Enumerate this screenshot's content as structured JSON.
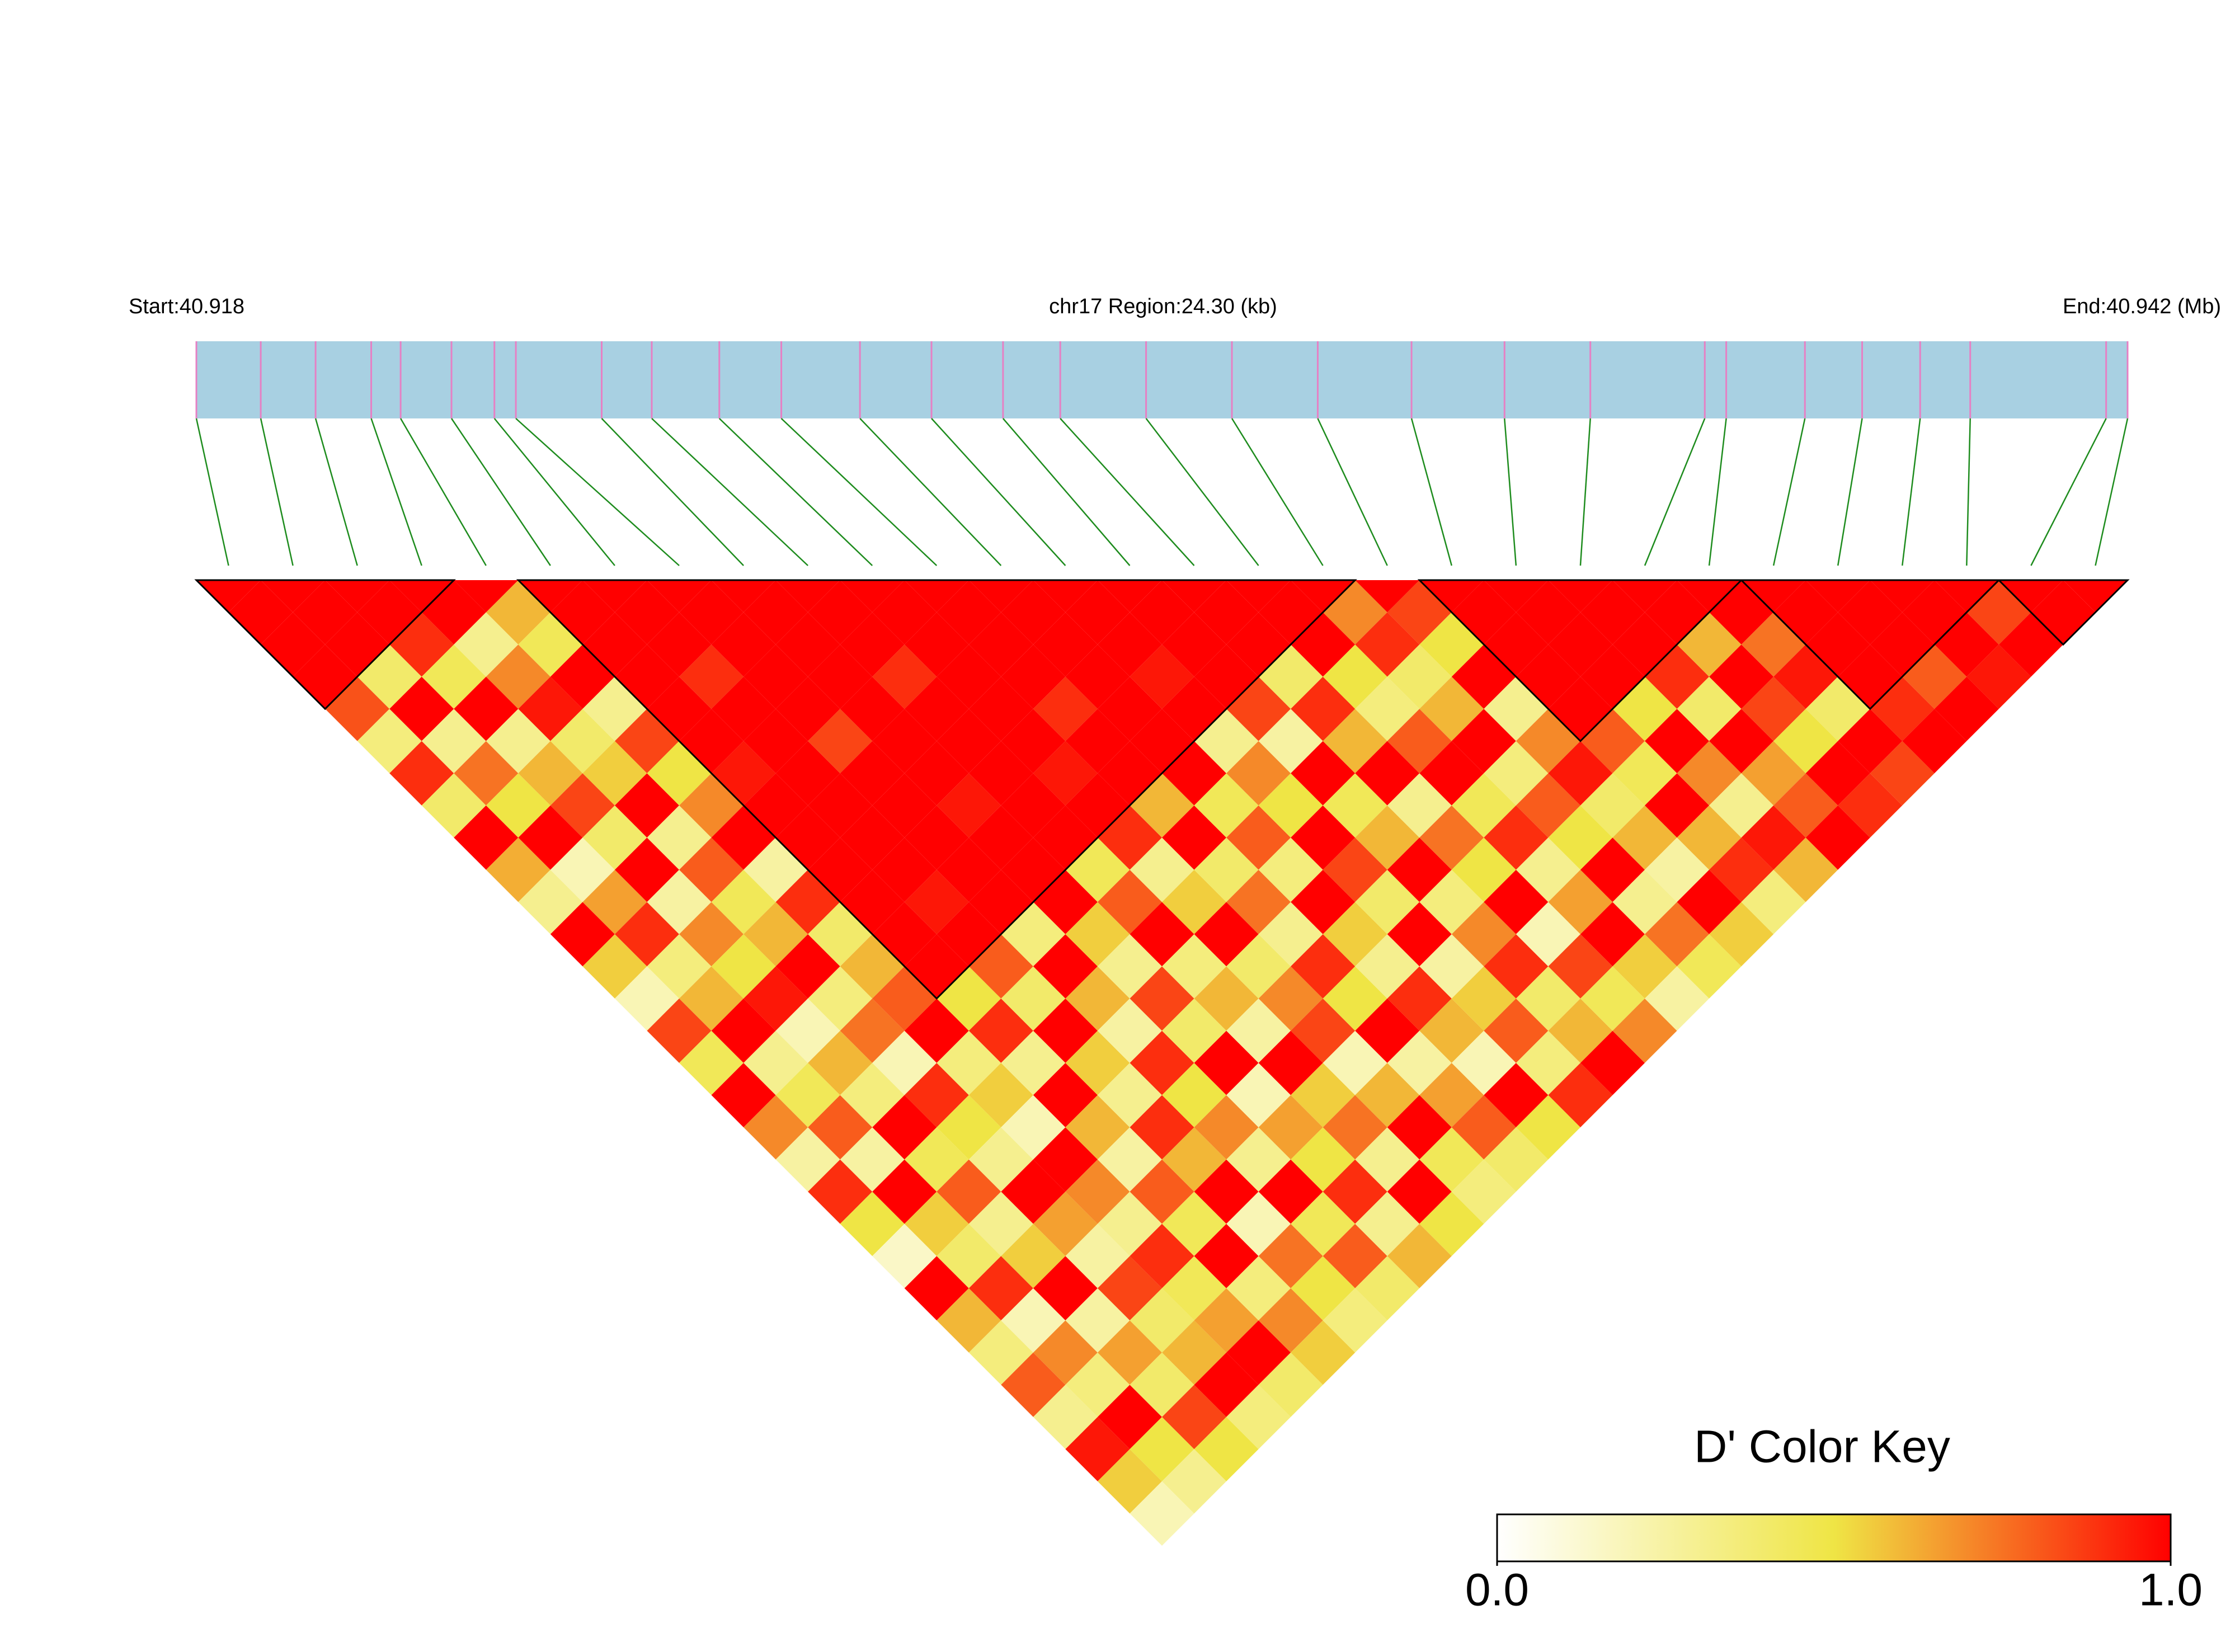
{
  "chart_data": {
    "type": "ld-heatmap",
    "start_label": "Start:40.918",
    "region_label": "chr17 Region:24.30 (kb)",
    "end_label": "End:40.942 (Mb)",
    "xlim": [
      40.918,
      40.9423
    ],
    "snp_positions": [
      40.918,
      40.91881,
      40.9195,
      40.9202,
      40.92057,
      40.92121,
      40.92175,
      40.92202,
      40.9231,
      40.92373,
      40.92458,
      40.92536,
      40.92635,
      40.92725,
      40.92815,
      40.92887,
      40.92995,
      40.93103,
      40.93211,
      40.93329,
      40.93446,
      40.93554,
      40.93698,
      40.93725,
      40.93824,
      40.93896,
      40.93969,
      40.94032,
      40.94203,
      40.9423
    ],
    "dprime": [
      [
        1,
        1,
        1,
        0.82,
        0.35,
        0.9,
        0.4,
        1,
        0.62,
        0.3,
        1,
        0.55,
        0.2,
        0.85,
        0.45,
        1,
        0.7,
        0.25,
        0.9,
        0.5,
        0.15,
        1,
        0.6,
        0.35,
        0.8,
        0.3,
        0.95,
        0.55,
        0.2
      ],
      [
        1,
        1,
        0.4,
        1,
        0.3,
        0.75,
        0.5,
        1,
        0.2,
        0.65,
        0.9,
        0.35,
        0.6,
        1,
        0.3,
        0.45,
        0.8,
        0.25,
        1,
        0.55,
        0.4,
        0.9,
        0.2,
        0.7,
        0.35,
        1,
        0.5,
        0.3
      ],
      [
        1,
        0.9,
        0.45,
        1,
        0.3,
        0.6,
        0.85,
        0.4,
        1,
        0.25,
        0.7,
        0.5,
        0.95,
        0.2,
        0.6,
        0.35,
        1,
        0.45,
        0.8,
        0.3,
        0.55,
        1,
        0.25,
        0.65,
        0.4,
        0.85,
        0.5
      ],
      [
        1,
        0.3,
        0.7,
        0.95,
        0.4,
        0.55,
        1,
        0.3,
        0.8,
        0.45,
        0.6,
        1,
        0.35,
        0.75,
        0.2,
        0.9,
        0.5,
        0.3,
        1,
        0.65,
        0.25,
        0.85,
        0.4,
        0.6,
        1,
        0.35
      ],
      [
        0.6,
        0.45,
        1,
        0.3,
        0.85,
        0.5,
        0.7,
        1,
        0.25,
        0.9,
        0.4,
        0.6,
        0.8,
        1,
        0.35,
        0.55,
        0.2,
        1,
        0.7,
        0.3,
        0.9,
        0.45,
        0.65,
        1,
        0.4
      ],
      [
        1,
        1,
        1,
        1,
        1,
        0.95,
        1,
        1,
        1,
        1,
        1,
        1,
        0.5,
        0.9,
        0.3,
        1,
        0.6,
        0.25,
        0.8,
        0.45,
        1,
        0.35,
        0.7,
        0.55
      ],
      [
        1,
        1,
        0.9,
        1,
        1,
        1,
        1,
        1,
        1,
        0.95,
        1,
        0.8,
        0.4,
        1,
        0.55,
        0.3,
        0.9,
        0.6,
        1,
        0.2,
        0.75,
        0.5,
        0.35
      ],
      [
        1,
        1,
        1,
        1,
        0.85,
        1,
        1,
        1,
        1,
        1,
        0.35,
        1,
        0.6,
        0.25,
        0.9,
        0.5,
        0.7,
        0.3,
        1,
        0.45,
        0.8,
        0.4
      ],
      [
        1,
        1,
        1,
        1,
        1,
        1,
        0.95,
        1,
        1,
        1,
        0.55,
        0.3,
        0.85,
        0.4,
        1,
        0.2,
        0.65,
        0.5,
        0.9,
        0.3,
        0.6
      ],
      [
        1,
        1,
        0.9,
        1,
        1,
        1,
        1,
        1,
        0.45,
        0.8,
        1,
        0.35,
        0.6,
        0.25,
        1,
        0.55,
        0.75,
        0.3,
        1,
        0.5
      ],
      [
        1,
        1,
        1,
        1,
        1,
        0.95,
        1,
        0.9,
        0.3,
        0.55,
        1,
        0.4,
        0.7,
        0.85,
        0.2,
        0.6,
        1,
        0.45,
        0.35
      ],
      [
        1,
        1,
        1,
        0.9,
        1,
        1,
        0.6,
        1,
        0.4,
        0.75,
        0.3,
        0.9,
        0.5,
        1,
        0.25,
        0.65,
        0.8,
        0.4
      ],
      [
        1,
        1,
        1,
        1,
        1,
        1,
        0.45,
        0.8,
        0.35,
        1,
        0.55,
        0.3,
        0.9,
        0.6,
        0.2,
        1,
        0.5
      ],
      [
        1,
        1,
        0.95,
        1,
        0.3,
        0.7,
        0.5,
        1,
        0.85,
        0.4,
        1,
        0.25,
        0.55,
        0.8,
        0.35,
        0.9
      ],
      [
        1,
        1,
        1,
        0.85,
        0.25,
        1,
        0.45,
        0.6,
        1,
        0.35,
        0.7,
        0.9,
        0.4,
        0.6,
        1
      ],
      [
        1,
        1,
        0.4,
        0.9,
        0.6,
        1,
        0.3,
        0.75,
        0.5,
        1,
        0.2,
        0.85,
        0.45,
        0.7
      ],
      [
        1,
        1,
        0.5,
        0.35,
        0.8,
        1,
        0.45,
        0.9,
        0.3,
        0.65,
        1,
        0.55,
        0.25
      ],
      [
        0.7,
        0.9,
        0.4,
        0.6,
        1,
        0.35,
        0.8,
        0.5,
        1,
        0.3,
        0.75,
        0.45
      ],
      [
        0.85,
        0.5,
        1,
        0.3,
        0.7,
        0.95,
        0.4,
        0.6,
        0.25,
        1,
        0.55
      ],
      [
        1,
        1,
        1,
        1,
        0.8,
        0.45,
        1,
        0.6,
        0.9,
        0.35
      ],
      [
        1,
        1,
        1,
        0.5,
        1,
        0.7,
        0.3,
        0.95,
        0.6
      ],
      [
        1,
        1,
        0.9,
        0.4,
        1,
        0.65,
        0.8,
        1
      ],
      [
        1,
        0.6,
        1,
        0.85,
        0.5,
        1,
        0.9
      ],
      [
        1,
        0.75,
        0.95,
        0.4,
        1,
        0.85
      ],
      [
        1,
        1,
        1,
        0.9,
        1
      ],
      [
        1,
        1,
        0.8,
        1
      ],
      [
        1,
        1,
        0.95
      ],
      [
        0.85,
        1
      ],
      [
        1
      ]
    ],
    "blocks": [
      [
        0,
        3
      ],
      [
        5,
        17
      ],
      [
        19,
        23
      ],
      [
        24,
        27
      ],
      [
        28,
        29
      ]
    ],
    "bar_color": "#a8d0e2",
    "snp_color": "#e680c4",
    "connector_color": "#1e8c1e",
    "block_color": "#000000",
    "color_key": {
      "title": "D' Color Key",
      "colors": [
        "#ffffff",
        "#efe545",
        "#ff0000"
      ],
      "range": [
        0,
        1
      ],
      "ticks": [
        {
          "value": 0,
          "label": "0.0"
        },
        {
          "value": 1,
          "label": "1.0"
        }
      ]
    }
  }
}
